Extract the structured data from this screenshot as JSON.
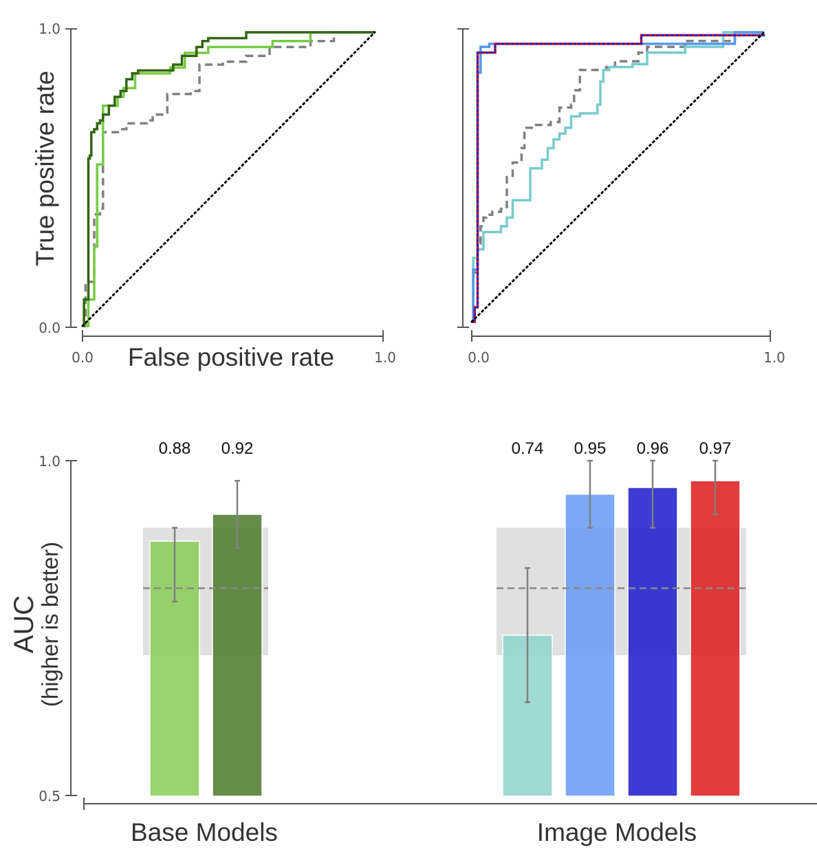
{
  "chart_data": [
    {
      "type": "line",
      "panel": "roc-base",
      "xlabel": "False positive rate",
      "ylabel": "True positive rate",
      "xlim": [
        0,
        1
      ],
      "ylim": [
        0,
        1
      ],
      "x_ticks": [
        "0.0",
        "1.0"
      ],
      "y_ticks": [
        "0.0",
        "1.0"
      ],
      "series": [
        {
          "color": "#808080",
          "style": "dashed",
          "x": [
            0,
            0.01,
            0.01,
            0.04,
            0.04,
            0.06,
            0.06,
            0.07,
            0.07,
            0.13,
            0.13,
            0.15,
            0.15,
            0.22,
            0.22,
            0.24,
            0.24,
            0.29,
            0.29,
            0.37,
            0.37,
            0.4,
            0.4,
            0.48,
            0.48,
            0.56,
            0.56,
            0.64,
            0.64,
            0.78,
            0.78,
            0.86,
            0.86,
            1.0
          ],
          "y": [
            0,
            0,
            0.15,
            0.15,
            0.38,
            0.38,
            0.4,
            0.4,
            0.66,
            0.66,
            0.67,
            0.67,
            0.69,
            0.69,
            0.7,
            0.7,
            0.72,
            0.72,
            0.79,
            0.79,
            0.8,
            0.8,
            0.89,
            0.89,
            0.9,
            0.9,
            0.92,
            0.92,
            0.95,
            0.95,
            0.97,
            0.97,
            1.0,
            1.0
          ]
        },
        {
          "color": "#77cc44",
          "style": "solid",
          "x": [
            0,
            0.02,
            0.02,
            0.04,
            0.04,
            0.05,
            0.05,
            0.07,
            0.07,
            0.12,
            0.12,
            0.14,
            0.14,
            0.18,
            0.18,
            0.3,
            0.3,
            0.35,
            0.35,
            0.43,
            0.43,
            0.65,
            0.65,
            0.78,
            0.78,
            1.0
          ],
          "y": [
            0,
            0,
            0.09,
            0.09,
            0.27,
            0.27,
            0.55,
            0.55,
            0.75,
            0.75,
            0.78,
            0.78,
            0.81,
            0.81,
            0.86,
            0.86,
            0.88,
            0.88,
            0.93,
            0.93,
            0.95,
            0.95,
            0.97,
            0.97,
            1.0,
            1.0
          ]
        },
        {
          "color": "#336611",
          "style": "solid",
          "x": [
            0,
            0.005,
            0.005,
            0.02,
            0.02,
            0.025,
            0.025,
            0.03,
            0.03,
            0.04,
            0.04,
            0.05,
            0.05,
            0.06,
            0.06,
            0.07,
            0.07,
            0.09,
            0.09,
            0.11,
            0.11,
            0.13,
            0.13,
            0.15,
            0.15,
            0.17,
            0.17,
            0.19,
            0.19,
            0.31,
            0.31,
            0.34,
            0.34,
            0.39,
            0.39,
            0.41,
            0.41,
            0.43,
            0.43,
            0.56,
            0.56,
            0.65,
            0.65,
            0.7,
            0.7,
            1.0
          ],
          "y": [
            0,
            0,
            0.09,
            0.09,
            0.57,
            0.57,
            0.58,
            0.58,
            0.66,
            0.66,
            0.67,
            0.67,
            0.69,
            0.69,
            0.7,
            0.7,
            0.72,
            0.72,
            0.75,
            0.75,
            0.78,
            0.78,
            0.8,
            0.8,
            0.84,
            0.84,
            0.86,
            0.86,
            0.87,
            0.87,
            0.89,
            0.89,
            0.92,
            0.92,
            0.95,
            0.95,
            0.97,
            0.97,
            0.98,
            0.98,
            1.0,
            1.0,
            1.0,
            1.0,
            1.0,
            1.0
          ]
        },
        {
          "color": "#000000",
          "style": "dotted",
          "x": [
            0,
            1
          ],
          "y": [
            0,
            1
          ]
        }
      ]
    },
    {
      "type": "line",
      "panel": "roc-image",
      "xlim": [
        0,
        1
      ],
      "ylim": [
        0,
        1
      ],
      "x_ticks": [
        "0.0",
        "1.0"
      ],
      "series": [
        {
          "color": "#808080",
          "style": "dashed",
          "x": [
            0,
            0.005,
            0.005,
            0.02,
            0.02,
            0.03,
            0.03,
            0.04,
            0.04,
            0.05,
            0.05,
            0.07,
            0.07,
            0.1,
            0.1,
            0.12,
            0.12,
            0.14,
            0.14,
            0.17,
            0.17,
            0.18,
            0.18,
            0.22,
            0.22,
            0.27,
            0.27,
            0.3,
            0.3,
            0.34,
            0.34,
            0.35,
            0.35,
            0.37,
            0.37,
            0.46,
            0.46,
            0.49,
            0.49,
            0.57,
            0.57,
            0.6,
            0.6,
            0.73,
            0.73,
            0.9,
            0.9,
            1.0
          ],
          "y": [
            0,
            0,
            0.17,
            0.17,
            0.27,
            0.27,
            0.33,
            0.33,
            0.36,
            0.36,
            0.37,
            0.37,
            0.38,
            0.38,
            0.39,
            0.39,
            0.5,
            0.5,
            0.55,
            0.55,
            0.6,
            0.6,
            0.67,
            0.67,
            0.68,
            0.68,
            0.69,
            0.69,
            0.74,
            0.74,
            0.75,
            0.75,
            0.8,
            0.8,
            0.87,
            0.87,
            0.88,
            0.88,
            0.9,
            0.9,
            0.93,
            0.93,
            0.95,
            0.95,
            0.97,
            0.97,
            1.0,
            1.0
          ]
        },
        {
          "color": "#77cccc",
          "style": "solid",
          "x": [
            0,
            0.005,
            0.005,
            0.02,
            0.02,
            0.04,
            0.04,
            0.1,
            0.1,
            0.12,
            0.12,
            0.14,
            0.14,
            0.2,
            0.2,
            0.24,
            0.24,
            0.26,
            0.26,
            0.28,
            0.28,
            0.3,
            0.3,
            0.32,
            0.32,
            0.34,
            0.34,
            0.37,
            0.37,
            0.41,
            0.41,
            0.43,
            0.43,
            0.44,
            0.44,
            0.45,
            0.45,
            0.47,
            0.47,
            0.55,
            0.55,
            0.6,
            0.6,
            0.73,
            0.73,
            0.86,
            0.86,
            1.0
          ],
          "y": [
            0,
            0,
            0.22,
            0.22,
            0.25,
            0.25,
            0.31,
            0.31,
            0.33,
            0.33,
            0.36,
            0.36,
            0.42,
            0.42,
            0.53,
            0.53,
            0.56,
            0.56,
            0.6,
            0.6,
            0.63,
            0.63,
            0.65,
            0.65,
            0.67,
            0.67,
            0.71,
            0.71,
            0.72,
            0.72,
            0.72,
            0.72,
            0.75,
            0.75,
            0.83,
            0.83,
            0.87,
            0.87,
            0.88,
            0.88,
            0.89,
            0.89,
            0.93,
            0.93,
            0.95,
            0.95,
            1.0,
            1.0
          ]
        },
        {
          "color": "#5599ee",
          "style": "solid",
          "x": [
            0,
            0.005,
            0.005,
            0.02,
            0.02,
            0.03,
            0.03,
            0.06,
            0.06,
            0.9,
            0.9,
            1.0
          ],
          "y": [
            0,
            0,
            0.18,
            0.18,
            0.86,
            0.86,
            0.95,
            0.95,
            0.96,
            0.96,
            1.0,
            1.0
          ]
        },
        {
          "color": "#dd1111",
          "style": "solid",
          "x": [
            0,
            0.01,
            0.01,
            0.02,
            0.02,
            0.08,
            0.08,
            0.58,
            0.58,
            1.0
          ],
          "y": [
            0,
            0,
            0.05,
            0.05,
            0.93,
            0.93,
            0.96,
            0.96,
            0.99,
            0.99
          ]
        },
        {
          "color": "#2222cc",
          "style": "dotted",
          "x": [
            0,
            0.01,
            0.01,
            0.02,
            0.02,
            0.08,
            0.08,
            0.58,
            0.58,
            1.0
          ],
          "y": [
            0,
            0,
            0.05,
            0.05,
            0.93,
            0.93,
            0.96,
            0.96,
            0.99,
            0.99
          ]
        },
        {
          "color": "#000000",
          "style": "dotted",
          "x": [
            0,
            1
          ],
          "y": [
            0,
            1
          ]
        }
      ]
    },
    {
      "type": "bar",
      "panel": "auc-bars",
      "ylabel": "AUC",
      "ylabel_sub": "(higher is better)",
      "ylim": [
        0.5,
        1.0
      ],
      "y_ticks": [
        "0.5",
        "1.0"
      ],
      "groups": [
        {
          "label": "Base Models",
          "baseline": {
            "mean": 0.81,
            "low": 0.71,
            "high": 0.9
          },
          "bars": [
            {
              "value": 0.88,
              "label": "0.88",
              "err_low": 0.79,
              "err_high": 0.9,
              "color": "#88cc55"
            },
            {
              "value": 0.92,
              "label": "0.92",
              "err_low": 0.87,
              "err_high": 0.97,
              "color": "#4a7a2a"
            }
          ]
        },
        {
          "label": "Image Models",
          "baseline": {
            "mean": 0.81,
            "low": 0.71,
            "high": 0.9
          },
          "bars": [
            {
              "value": 0.74,
              "label": "0.74",
              "err_low": 0.64,
              "err_high": 0.84,
              "color": "#8fd3cd"
            },
            {
              "value": 0.95,
              "label": "0.95",
              "err_low": 0.9,
              "err_high": 1.0,
              "color": "#6699f5"
            },
            {
              "value": 0.96,
              "label": "0.96",
              "err_low": 0.9,
              "err_high": 1.0,
              "color": "#1a1acc"
            },
            {
              "value": 0.97,
              "label": "0.97",
              "err_low": 0.92,
              "err_high": 1.0,
              "color": "#dd1a1a"
            }
          ]
        }
      ]
    }
  ]
}
